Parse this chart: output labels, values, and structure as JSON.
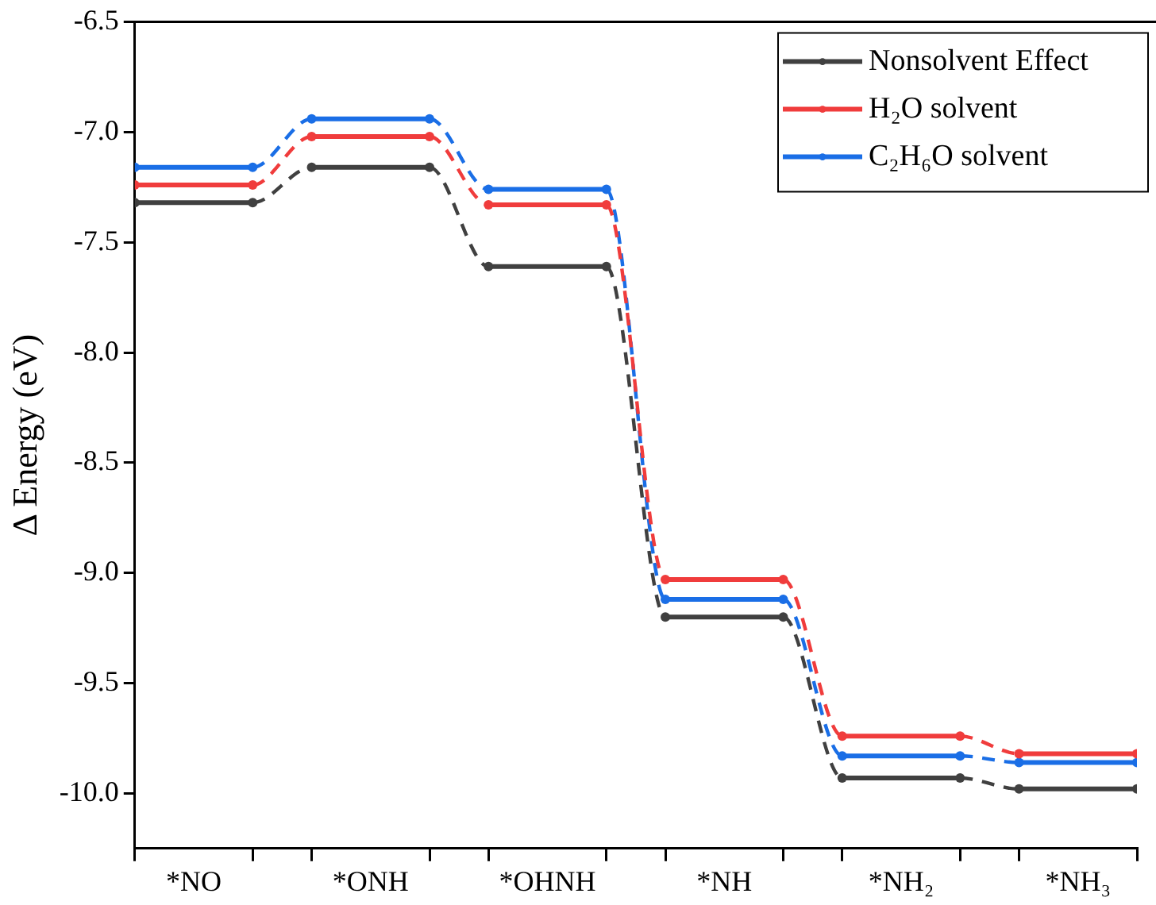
{
  "chart_data": {
    "type": "line",
    "ylabel": "Δ Energy (eV)",
    "categories": [
      null,
      "*NO",
      null,
      null,
      "*ONH",
      null,
      null,
      "*OHNH",
      null,
      null,
      "*NH",
      null,
      null,
      "*NH₂",
      null,
      null,
      "*NH₃",
      null
    ],
    "series": [
      {
        "name": "Nonsolvent Effect",
        "color": "#404040",
        "values": [
          -7.32,
          -7.32,
          -7.32,
          -7.16,
          -7.16,
          -7.16,
          -7.61,
          -7.61,
          -7.61,
          -9.2,
          -9.2,
          -9.2,
          -9.93,
          -9.93,
          -9.93,
          -9.98,
          -9.98,
          -9.98
        ]
      },
      {
        "name": "H₂O solvent",
        "color": "#f03c3c",
        "values": [
          -7.24,
          -7.24,
          -7.24,
          -7.02,
          -7.02,
          -7.02,
          -7.33,
          -7.33,
          -7.33,
          -9.03,
          -9.03,
          -9.03,
          -9.74,
          -9.74,
          -9.74,
          -9.82,
          -9.82,
          -9.82
        ]
      },
      {
        "name": "C₂H₆O solvent",
        "color": "#1a6ee6",
        "values": [
          -7.16,
          -7.16,
          -7.16,
          -6.94,
          -6.94,
          -6.94,
          -7.26,
          -7.26,
          -7.26,
          -9.12,
          -9.12,
          -9.12,
          -9.83,
          -9.83,
          -9.83,
          -9.86,
          -9.86,
          -9.86
        ]
      }
    ],
    "ylim": [
      -10.25,
      -6.5
    ],
    "yticks": [
      -6.5,
      {
        "value": -7,
        "label": "-7.0"
      },
      -7.5,
      {
        "value": -8,
        "label": "-8.0"
      },
      -8.5,
      {
        "value": -9,
        "label": "-9.0"
      },
      -9.5,
      {
        "value": -10,
        "label": "-10.0"
      }
    ],
    "grid": false,
    "legend": "top right",
    "marker": "circle",
    "line_style": "dashed"
  }
}
